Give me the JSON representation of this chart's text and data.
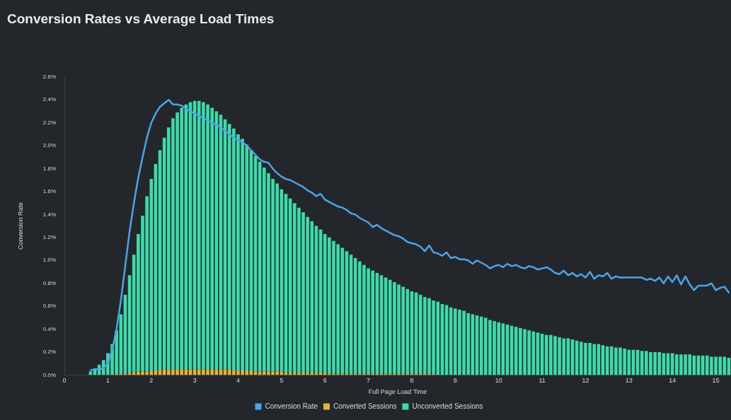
{
  "chart_data": {
    "type": "bar",
    "title": "Conversion Rates vs Average Load Times",
    "xlabel": "Full Page Load Time",
    "ylabel": "Conversion Rate",
    "stacked": true,
    "legend": "bottom",
    "grid": false,
    "xlim": [
      0,
      15.35
    ],
    "xticks": [
      0,
      1,
      2,
      3,
      4,
      5,
      6,
      7,
      8,
      9,
      10,
      11,
      12,
      13,
      14,
      15
    ],
    "ylim": [
      0,
      2.6
    ],
    "yticks": [
      {
        "value": 0,
        "label": "0.0%"
      },
      {
        "value": 0.2,
        "label": "0.2%"
      },
      {
        "value": 0.4,
        "label": "0.4%"
      },
      {
        "value": 0.6,
        "label": "0.6%"
      },
      {
        "value": 0.8,
        "label": "0.8%"
      },
      {
        "value": 1.0,
        "label": "1.0%"
      },
      {
        "value": 1.2,
        "label": "1.2%"
      },
      {
        "value": 1.4,
        "label": "1.4%"
      },
      {
        "value": 1.6,
        "label": "1.6%"
      },
      {
        "value": 1.8,
        "label": "1.8%"
      },
      {
        "value": 2.0,
        "label": "2.0%"
      },
      {
        "value": 2.2,
        "label": "2.2%"
      },
      {
        "value": 2.4,
        "label": "2.4%"
      },
      {
        "value": 2.6,
        "label": "2.6%"
      }
    ],
    "x": [
      0.6,
      0.7,
      0.8,
      0.9,
      1.0,
      1.1,
      1.2,
      1.3,
      1.4,
      1.5,
      1.6,
      1.7,
      1.8,
      1.9,
      2.0,
      2.1,
      2.2,
      2.3,
      2.4,
      2.5,
      2.6,
      2.7,
      2.8,
      2.9,
      3.0,
      3.1,
      3.2,
      3.3,
      3.4,
      3.5,
      3.6,
      3.7,
      3.8,
      3.9,
      4.0,
      4.1,
      4.2,
      4.3,
      4.4,
      4.5,
      4.6,
      4.7,
      4.8,
      4.9,
      5.0,
      5.1,
      5.2,
      5.3,
      5.4,
      5.5,
      5.6,
      5.7,
      5.8,
      5.9,
      6.0,
      6.1,
      6.2,
      6.3,
      6.4,
      6.5,
      6.6,
      6.7,
      6.8,
      6.9,
      7.0,
      7.1,
      7.2,
      7.3,
      7.4,
      7.5,
      7.6,
      7.7,
      7.8,
      7.9,
      8.0,
      8.1,
      8.2,
      8.3,
      8.4,
      8.5,
      8.6,
      8.7,
      8.8,
      8.9,
      9.0,
      9.1,
      9.2,
      9.3,
      9.4,
      9.5,
      9.6,
      9.7,
      9.8,
      9.9,
      10.0,
      10.1,
      10.2,
      10.3,
      10.4,
      10.5,
      10.6,
      10.7,
      10.8,
      10.9,
      11.0,
      11.1,
      11.2,
      11.3,
      11.4,
      11.5,
      11.6,
      11.7,
      11.8,
      11.9,
      12.0,
      12.1,
      12.2,
      12.3,
      12.4,
      12.5,
      12.6,
      12.7,
      12.8,
      12.9,
      13.0,
      13.1,
      13.2,
      13.3,
      13.4,
      13.5,
      13.6,
      13.7,
      13.8,
      13.9,
      14.0,
      14.1,
      14.2,
      14.3,
      14.4,
      14.5,
      14.6,
      14.7,
      14.8,
      14.9,
      15.0,
      15.1,
      15.2,
      15.3
    ],
    "series": [
      {
        "name": "Conversion Rate",
        "type": "line",
        "marker": "none",
        "line_style": "solid",
        "color": "#4ea3e6",
        "values": [
          0.04,
          0.05,
          0.05,
          0.06,
          0.1,
          0.22,
          0.4,
          0.65,
          0.95,
          1.25,
          1.5,
          1.72,
          1.9,
          2.07,
          2.2,
          2.28,
          2.34,
          2.37,
          2.4,
          2.36,
          2.36,
          2.35,
          2.32,
          2.3,
          2.28,
          2.26,
          2.24,
          2.22,
          2.2,
          2.18,
          2.16,
          2.13,
          2.1,
          2.07,
          2.05,
          2.03,
          2.0,
          1.96,
          1.92,
          1.88,
          1.86,
          1.85,
          1.8,
          1.76,
          1.73,
          1.71,
          1.7,
          1.68,
          1.66,
          1.64,
          1.61,
          1.59,
          1.56,
          1.58,
          1.53,
          1.51,
          1.49,
          1.47,
          1.46,
          1.44,
          1.41,
          1.4,
          1.37,
          1.35,
          1.33,
          1.29,
          1.31,
          1.28,
          1.26,
          1.24,
          1.22,
          1.21,
          1.19,
          1.16,
          1.15,
          1.14,
          1.12,
          1.08,
          1.13,
          1.07,
          1.06,
          1.04,
          1.07,
          1.02,
          1.03,
          1.01,
          1.01,
          1.0,
          0.97,
          1.0,
          0.98,
          0.96,
          0.93,
          0.95,
          0.96,
          0.94,
          0.97,
          0.95,
          0.96,
          0.94,
          0.93,
          0.95,
          0.94,
          0.92,
          0.93,
          0.94,
          0.92,
          0.89,
          0.88,
          0.91,
          0.87,
          0.89,
          0.86,
          0.88,
          0.85,
          0.9,
          0.84,
          0.87,
          0.86,
          0.89,
          0.84,
          0.86,
          0.85,
          0.85,
          0.85,
          0.85,
          0.85,
          0.85,
          0.83,
          0.84,
          0.82,
          0.85,
          0.8,
          0.86,
          0.81,
          0.87,
          0.79,
          0.86,
          0.79,
          0.74,
          0.78,
          0.78,
          0.78,
          0.8,
          0.74,
          0.76,
          0.77,
          0.72
        ]
      },
      {
        "name": "Converted Sessions",
        "color": "#e2b33a",
        "values": [
          0,
          0,
          0,
          0,
          0,
          0,
          0.01,
          0.01,
          0.01,
          0.02,
          0.02,
          0.03,
          0.03,
          0.03,
          0.04,
          0.04,
          0.04,
          0.05,
          0.05,
          0.05,
          0.05,
          0.05,
          0.05,
          0.05,
          0.05,
          0.05,
          0.05,
          0.05,
          0.05,
          0.05,
          0.05,
          0.05,
          0.05,
          0.04,
          0.04,
          0.04,
          0.04,
          0.04,
          0.03,
          0.03,
          0.03,
          0.03,
          0.03,
          0.03,
          0.03,
          0.02,
          0.02,
          0.02,
          0.02,
          0.02,
          0.02,
          0.02,
          0.02,
          0.02,
          0.02,
          0.01,
          0.01,
          0.01,
          0.01,
          0.01,
          0.01,
          0.01,
          0.01,
          0.01,
          0.01,
          0.01,
          0.01,
          0.01,
          0.01,
          0.01,
          0.01,
          0.01,
          0.01,
          0.01,
          0.01,
          0.01,
          0.01,
          0.01,
          0.01,
          0.01,
          0,
          0,
          0,
          0,
          0,
          0,
          0,
          0,
          0,
          0,
          0,
          0,
          0,
          0,
          0,
          0,
          0,
          0,
          0,
          0,
          0,
          0,
          0,
          0,
          0,
          0,
          0,
          0,
          0,
          0,
          0,
          0,
          0,
          0,
          0,
          0,
          0,
          0,
          0,
          0,
          0,
          0,
          0,
          0,
          0,
          0,
          0,
          0,
          0,
          0,
          0,
          0,
          0,
          0,
          0,
          0,
          0,
          0,
          0,
          0,
          0,
          0,
          0,
          0,
          0,
          0,
          0,
          0
        ]
      },
      {
        "name": "Unconverted Sessions",
        "color": "#3fd9ab",
        "values": [
          0.03,
          0.06,
          0.09,
          0.13,
          0.19,
          0.27,
          0.38,
          0.52,
          0.69,
          0.85,
          1.03,
          1.2,
          1.36,
          1.53,
          1.67,
          1.8,
          1.92,
          2.02,
          2.11,
          2.19,
          2.24,
          2.28,
          2.31,
          2.33,
          2.34,
          2.34,
          2.33,
          2.31,
          2.28,
          2.25,
          2.22,
          2.18,
          2.14,
          2.11,
          2.06,
          2.02,
          1.97,
          1.92,
          1.88,
          1.83,
          1.78,
          1.73,
          1.68,
          1.64,
          1.59,
          1.56,
          1.52,
          1.48,
          1.44,
          1.4,
          1.36,
          1.32,
          1.28,
          1.25,
          1.21,
          1.19,
          1.16,
          1.13,
          1.1,
          1.07,
          1.04,
          1.01,
          0.98,
          0.95,
          0.92,
          0.9,
          0.88,
          0.86,
          0.84,
          0.82,
          0.8,
          0.78,
          0.76,
          0.74,
          0.72,
          0.71,
          0.69,
          0.67,
          0.66,
          0.64,
          0.64,
          0.62,
          0.61,
          0.59,
          0.58,
          0.57,
          0.56,
          0.54,
          0.53,
          0.52,
          0.51,
          0.5,
          0.48,
          0.47,
          0.46,
          0.45,
          0.44,
          0.43,
          0.42,
          0.41,
          0.4,
          0.39,
          0.38,
          0.37,
          0.36,
          0.35,
          0.35,
          0.34,
          0.33,
          0.32,
          0.32,
          0.31,
          0.3,
          0.29,
          0.28,
          0.28,
          0.27,
          0.27,
          0.26,
          0.25,
          0.25,
          0.24,
          0.24,
          0.23,
          0.22,
          0.22,
          0.22,
          0.21,
          0.21,
          0.2,
          0.2,
          0.2,
          0.19,
          0.19,
          0.19,
          0.18,
          0.18,
          0.18,
          0.18,
          0.17,
          0.17,
          0.17,
          0.17,
          0.16,
          0.16,
          0.16,
          0.16,
          0.15
        ]
      }
    ]
  }
}
